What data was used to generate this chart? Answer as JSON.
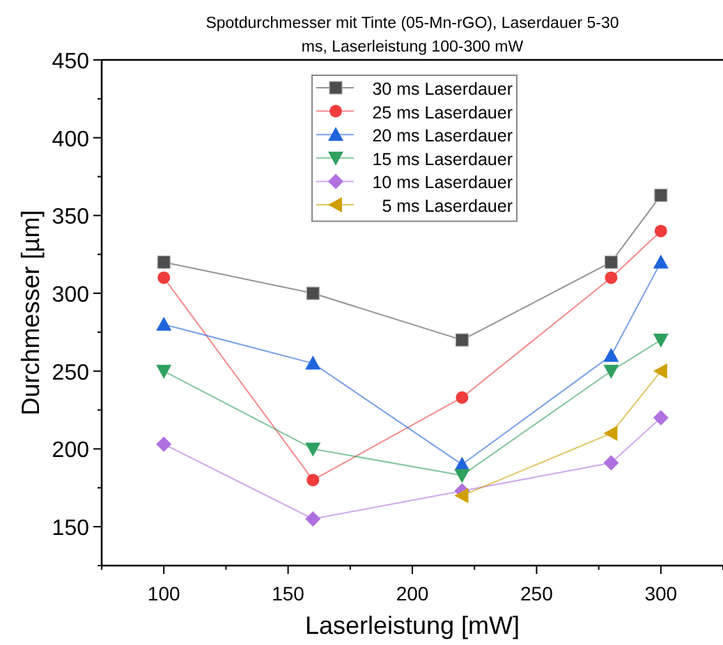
{
  "chart_data": {
    "type": "line",
    "title": "Spotdurchmesser mit Tinte (05-Mn-rGO), Laserdauer 5-30\nms, Laserleistung 100-300 mW",
    "xlabel": "Laserleistung [mW]",
    "ylabel": "Durchmesser [µm]",
    "x": [
      100,
      160,
      220,
      280,
      300
    ],
    "xlim": [
      75,
      325
    ],
    "xticks": [
      100,
      150,
      200,
      250,
      300
    ],
    "ylim": [
      125,
      450
    ],
    "yticks": [
      150,
      200,
      250,
      300,
      350,
      400,
      450
    ],
    "grid": false,
    "legend": "top",
    "series": [
      {
        "name": "30 ms Laserdauer",
        "color": "#4d4d4d",
        "marker": "square",
        "values": [
          320,
          300,
          270,
          320,
          363
        ]
      },
      {
        "name": "25 ms Laserdauer",
        "color": "#f03c3c",
        "marker": "circle",
        "values": [
          310,
          180,
          233,
          310,
          340
        ]
      },
      {
        "name": "20 ms Laserdauer",
        "color": "#1e64dc",
        "marker": "triangle",
        "values": [
          280,
          255,
          190,
          260,
          320
        ]
      },
      {
        "name": "15 ms Laserdauer",
        "color": "#2ea060",
        "marker": "triangle-down",
        "values": [
          250,
          200,
          183,
          250,
          270
        ]
      },
      {
        "name": "10 ms Laserdauer",
        "color": "#b070e0",
        "marker": "diamond",
        "values": [
          203,
          155,
          173,
          191,
          220
        ]
      },
      {
        "name": " 5 ms Laserdauer",
        "color": "#d0a000",
        "marker": "triangle-left",
        "x": [
          220,
          280,
          300
        ],
        "values": [
          170,
          210,
          250
        ]
      }
    ]
  }
}
